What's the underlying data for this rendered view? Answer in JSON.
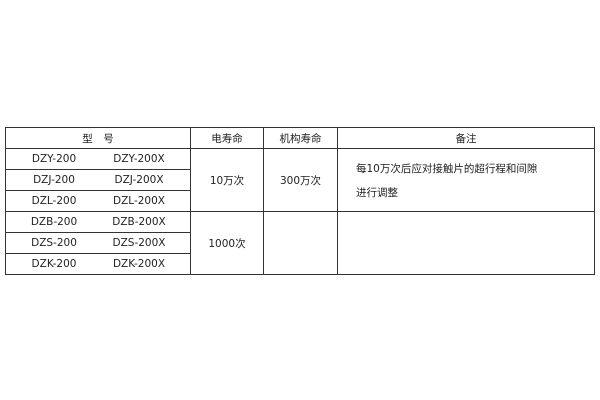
{
  "headers": {
    "model": "型　号",
    "electrical_life": "电寿命",
    "mechanical_life": "机构寿命",
    "remarks": "备注"
  },
  "rows": [
    {
      "model_a": "DZY-200",
      "model_b": "DZY-200X"
    },
    {
      "model_a": "DZJ-200",
      "model_b": "DZJ-200X"
    },
    {
      "model_a": "DZL-200",
      "model_b": "DZL-200X"
    },
    {
      "model_a": "DZB-200",
      "model_b": "DZB-200X"
    },
    {
      "model_a": "DZS-200",
      "model_b": "DZS-200X"
    },
    {
      "model_a": "DZK-200",
      "model_b": "DZK-200X"
    }
  ],
  "groups": [
    {
      "electrical_life": "10万次",
      "mechanical_life": "300万次",
      "remarks_line1": "每10万次后应对接触片的超行程和间隙",
      "remarks_line2": "进行调整"
    },
    {
      "electrical_life": "1000次",
      "mechanical_life": "",
      "remarks_line1": "",
      "remarks_line2": ""
    }
  ]
}
